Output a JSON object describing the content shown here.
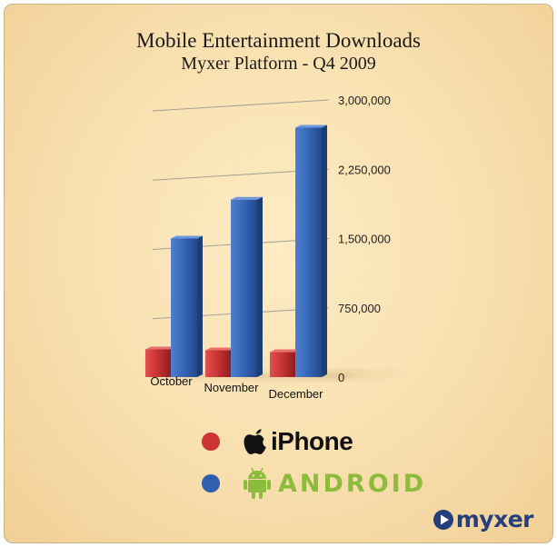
{
  "chart_data": {
    "type": "bar",
    "title": "Mobile Entertainment Downloads",
    "subtitle": "Myxer Platform - Q4 2009",
    "categories": [
      "October",
      "November",
      "December"
    ],
    "series": [
      {
        "name": "iPhone",
        "values": [
          300000,
          290000,
          270000
        ],
        "color": "#cc3333"
      },
      {
        "name": "ANDROID",
        "values": [
          1500000,
          1920000,
          2700000
        ],
        "color": "#2f5fae"
      }
    ],
    "yticks": [
      "0",
      "750,000",
      "1,500,000",
      "2,250,000",
      "3,000,000"
    ],
    "ylim": [
      0,
      3000000
    ],
    "grid": true,
    "legend_position": "bottom"
  },
  "legend": {
    "iphone": {
      "label": "iPhone",
      "icon": "apple-icon",
      "color": "#cc3333"
    },
    "android": {
      "label": "ANDROID",
      "icon": "android-icon",
      "color": "#2f5fae"
    }
  },
  "brand": {
    "label": "myxer",
    "icon": "myxer-play-icon"
  }
}
